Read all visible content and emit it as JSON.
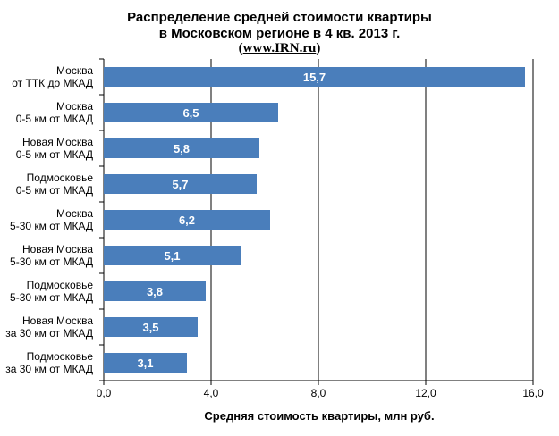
{
  "chart_data": {
    "type": "bar",
    "orientation": "horizontal",
    "title_lines": [
      "Распределение средней стоимости квартиры",
      "в Московском регионе в 4 кв. 2013 г.",
      "(www.IRN.ru)"
    ],
    "title_link": "www.IRN.ru",
    "xlabel": "Средняя стоимость квартиры, млн руб.",
    "ylabel": "",
    "xlim": [
      0,
      16
    ],
    "xticks": [
      "0,0",
      "4,0",
      "8,0",
      "12,0",
      "16,0"
    ],
    "xtick_values": [
      0,
      4,
      8,
      12,
      16
    ],
    "grid": true,
    "bar_color": "#4A7EBB",
    "label_color": "#ffffff",
    "categories": [
      [
        "Москва",
        "от ТТК до МКАД"
      ],
      [
        "Москва",
        "0-5 км от МКАД"
      ],
      [
        "Новая Москва",
        "0-5 км от МКАД"
      ],
      [
        "Подмосковье",
        "0-5 км от МКАД"
      ],
      [
        "Москва",
        "5-30 км от МКАД"
      ],
      [
        "Новая Москва",
        "5-30 км от МКАД"
      ],
      [
        "Подмосковье",
        "5-30 км от МКАД"
      ],
      [
        "Новая Москва",
        "за 30 км от МКАД"
      ],
      [
        "Подмосковье",
        "за 30 км от МКАД"
      ]
    ],
    "values": [
      15.7,
      6.5,
      5.8,
      5.7,
      6.2,
      5.1,
      3.8,
      3.5,
      3.1
    ],
    "value_labels": [
      "15,7",
      "6,5",
      "5,8",
      "5,7",
      "6,2",
      "5,1",
      "3,8",
      "3,5",
      "3,1"
    ]
  }
}
